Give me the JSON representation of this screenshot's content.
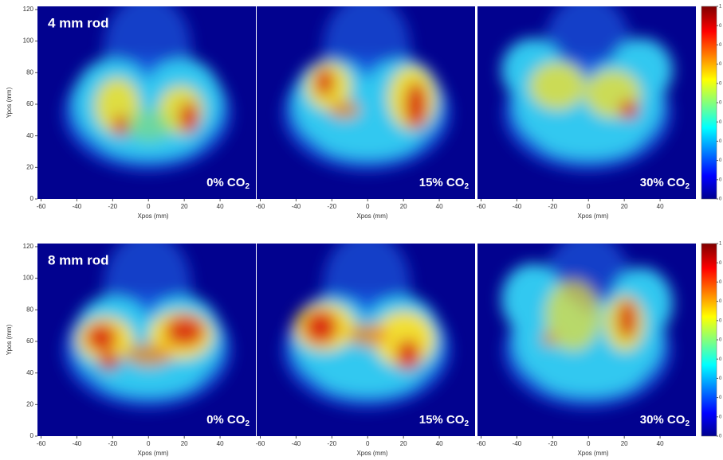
{
  "y_axis_label": "Ypos (mm)",
  "x_axis_label": "Xpos (mm)",
  "yticks": [
    0,
    20,
    40,
    60,
    80,
    100,
    120
  ],
  "xticks": [
    -60,
    -40,
    -20,
    0,
    20,
    40
  ],
  "colorbar_ticks": [
    "1",
    "0",
    "0",
    "0",
    "0",
    "0",
    "0",
    "0",
    "0",
    "0",
    "0"
  ],
  "rows": [
    {
      "label": "4 mm rod",
      "panels": [
        {
          "label": "0% CO",
          "subscript": "2"
        },
        {
          "label": "15% CO",
          "subscript": "2"
        },
        {
          "label": "30% CO",
          "subscript": "2"
        }
      ]
    },
    {
      "label": "8 mm rod",
      "panels": [
        {
          "label": "0% CO",
          "subscript": "2"
        },
        {
          "label": "15% CO",
          "subscript": "2"
        },
        {
          "label": "30% CO",
          "subscript": "2"
        }
      ]
    }
  ]
}
